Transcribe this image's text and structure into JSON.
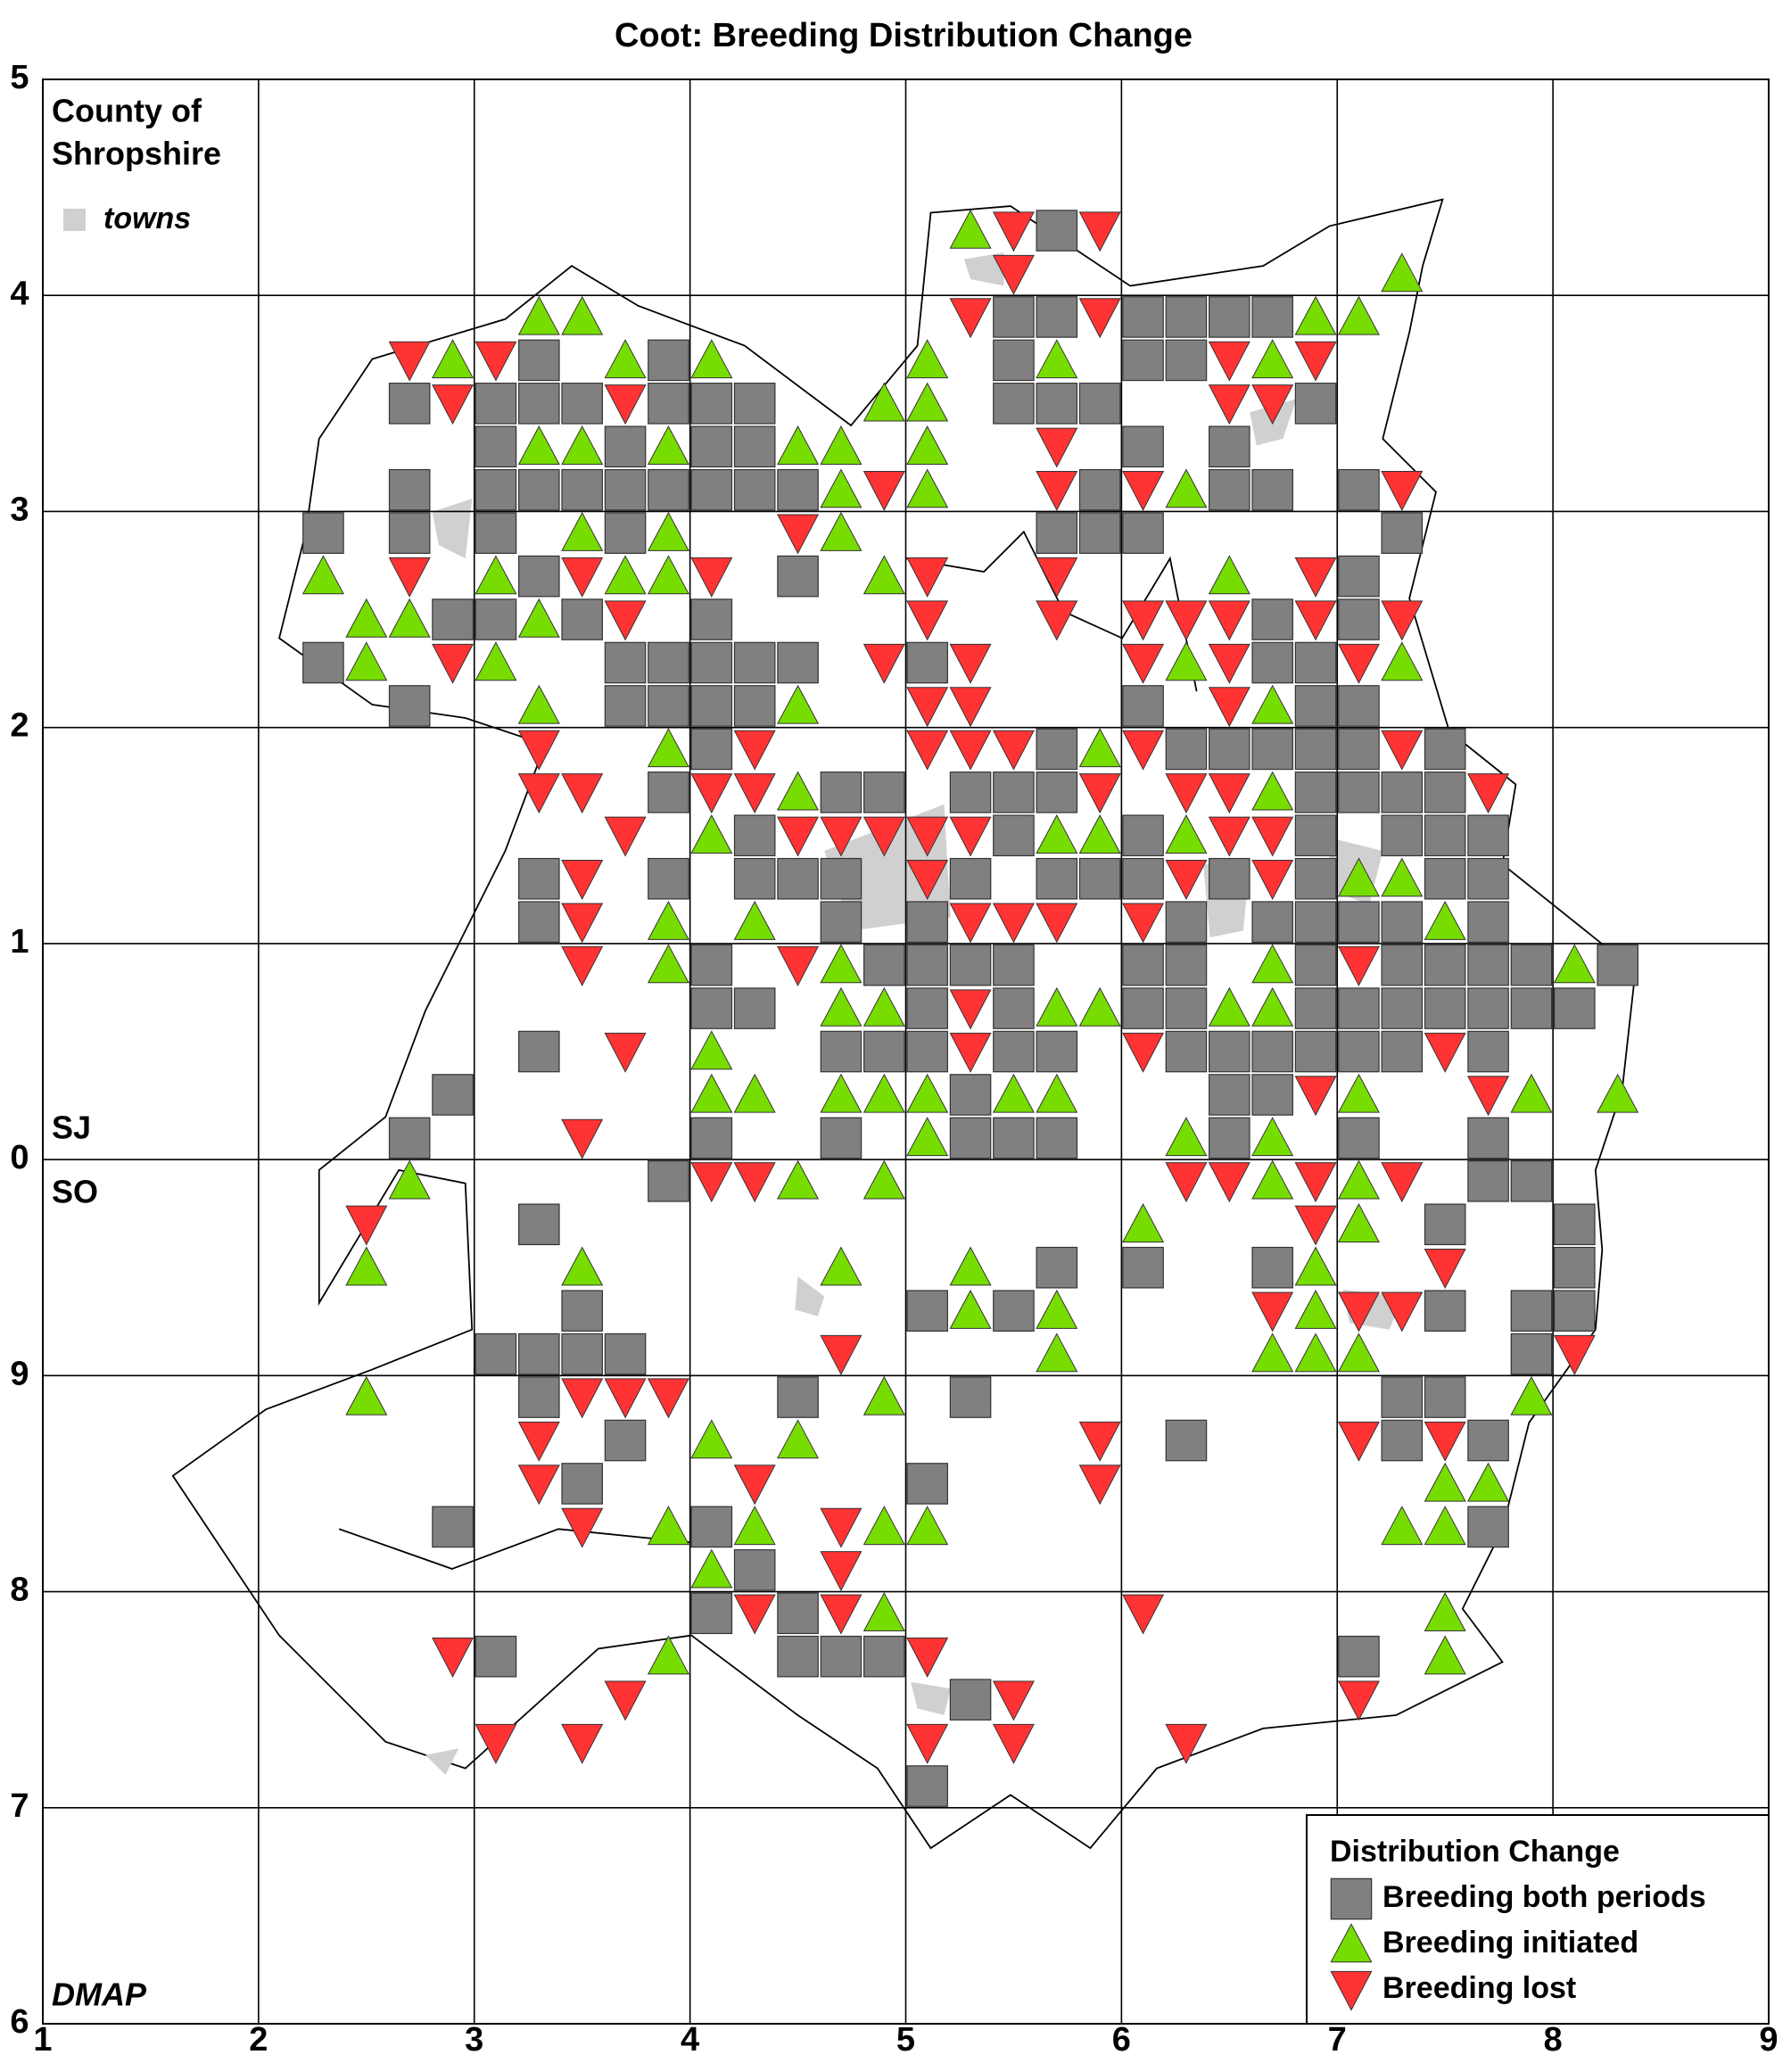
{
  "chart_data": {
    "type": "map",
    "title": "Coot: Breeding Distribution Change",
    "county_label": [
      "County of",
      "Shropshire"
    ],
    "towns_label": "towns",
    "grid_labels": [
      "SJ",
      "SO"
    ],
    "credit": "DMAP",
    "legend_title": "Distribution Change",
    "legend": "bottom right",
    "grid": true,
    "xlim": [
      1,
      9
    ],
    "xticks": [
      1,
      2,
      3,
      4,
      5,
      6,
      7,
      8,
      9
    ],
    "ylim": [
      6,
      15
    ],
    "yticks": [
      6,
      7,
      8,
      9,
      {
        "value": 10,
        "label": "0"
      },
      {
        "value": 11,
        "label": "1"
      },
      {
        "value": 12,
        "label": "2"
      },
      {
        "value": 13,
        "label": "3"
      },
      {
        "value": 14,
        "label": "4"
      },
      {
        "value": 15,
        "label": "5"
      }
    ],
    "series": [
      {
        "name": "Breeding both periods",
        "color": "#808080",
        "marker": "square",
        "rows": [
          {
            "y": 14.3,
            "x": [
              5.7
            ]
          },
          {
            "y": 13.9,
            "x": [
              5.5,
              5.7,
              6.1,
              6.3,
              6.5,
              6.7
            ]
          },
          {
            "y": 13.7,
            "x": [
              3.3,
              3.9,
              5.5,
              6.1,
              6.3
            ]
          },
          {
            "y": 13.5,
            "x": [
              2.7,
              3.1,
              3.3,
              3.5,
              3.9,
              4.1,
              4.3,
              5.5,
              5.7,
              5.9,
              6.9
            ]
          },
          {
            "y": 13.3,
            "x": [
              3.1,
              3.7,
              4.1,
              4.3,
              6.1,
              6.5
            ]
          },
          {
            "y": 13.1,
            "x": [
              2.7,
              3.1,
              3.3,
              3.5,
              3.7,
              3.9,
              4.1,
              4.3,
              4.5,
              5.9,
              6.5,
              6.7,
              7.1
            ]
          },
          {
            "y": 12.9,
            "x": [
              2.3,
              2.7,
              3.1,
              3.7,
              5.7,
              5.9,
              6.1,
              7.3
            ]
          },
          {
            "y": 12.7,
            "x": [
              3.3,
              4.5,
              7.1
            ]
          },
          {
            "y": 12.5,
            "x": [
              2.9,
              3.1,
              3.5,
              4.1,
              6.7,
              7.1
            ]
          },
          {
            "y": 12.3,
            "x": [
              2.3,
              3.7,
              3.9,
              4.1,
              4.3,
              4.5,
              5.1,
              6.7,
              6.9
            ]
          },
          {
            "y": 12.1,
            "x": [
              2.7,
              3.7,
              3.9,
              4.1,
              4.3,
              6.1,
              6.9,
              7.1
            ]
          },
          {
            "y": 11.9,
            "x": [
              4.1,
              5.7,
              6.3,
              6.5,
              6.7,
              6.9,
              7.1,
              7.5
            ]
          },
          {
            "y": 11.7,
            "x": [
              3.9,
              4.7,
              4.9,
              5.3,
              5.5,
              5.7,
              6.9,
              7.1,
              7.3,
              7.5
            ]
          },
          {
            "y": 11.5,
            "x": [
              4.3,
              5.5,
              6.1,
              6.9,
              7.3,
              7.5,
              7.7
            ]
          },
          {
            "y": 11.3,
            "x": [
              3.3,
              3.9,
              4.3,
              4.5,
              4.7,
              5.3,
              5.7,
              5.9,
              6.1,
              6.5,
              6.9,
              7.5,
              7.7
            ]
          },
          {
            "y": 11.1,
            "x": [
              3.3,
              4.7,
              5.1,
              6.3,
              6.7,
              6.9,
              7.1,
              7.3,
              7.7
            ]
          },
          {
            "y": 10.9,
            "x": [
              4.1,
              4.9,
              5.1,
              5.3,
              5.5,
              6.1,
              6.3,
              6.9,
              7.3,
              7.5,
              7.7,
              7.9,
              8.3
            ]
          },
          {
            "y": 10.7,
            "x": [
              4.1,
              4.3,
              5.1,
              5.5,
              6.1,
              6.3,
              6.9,
              7.1,
              7.3,
              7.5,
              7.7,
              7.9,
              8.1
            ]
          },
          {
            "y": 10.5,
            "x": [
              3.3,
              4.7,
              4.9,
              5.1,
              5.5,
              5.7,
              6.3,
              6.5,
              6.7,
              6.9,
              7.1,
              7.3,
              7.7
            ]
          },
          {
            "y": 10.3,
            "x": [
              2.9,
              5.3,
              6.5,
              6.7
            ]
          },
          {
            "y": 10.1,
            "x": [
              2.7,
              4.1,
              4.7,
              5.3,
              5.5,
              5.7,
              6.5,
              7.1,
              7.7
            ]
          },
          {
            "y": 9.9,
            "x": [
              3.9,
              7.7,
              7.9
            ]
          },
          {
            "y": 9.7,
            "x": [
              3.3,
              7.5,
              8.1
            ]
          },
          {
            "y": 9.5,
            "x": [
              5.7,
              6.1,
              6.7,
              8.1
            ]
          },
          {
            "y": 9.3,
            "x": [
              3.5,
              5.1,
              5.5,
              7.5,
              7.9,
              8.1
            ]
          },
          {
            "y": 9.1,
            "x": [
              3.1,
              3.3,
              3.5,
              3.7,
              7.9
            ]
          },
          {
            "y": 8.9,
            "x": [
              3.3,
              4.5,
              5.3,
              7.3,
              7.5
            ]
          },
          {
            "y": 8.7,
            "x": [
              3.7,
              6.3,
              7.3,
              7.7
            ]
          },
          {
            "y": 8.5,
            "x": [
              3.5,
              5.1
            ]
          },
          {
            "y": 8.3,
            "x": [
              2.9,
              4.1,
              7.7
            ]
          },
          {
            "y": 8.1,
            "x": [
              4.3
            ]
          },
          {
            "y": 7.9,
            "x": [
              4.1,
              4.5
            ]
          },
          {
            "y": 7.7,
            "x": [
              3.1,
              4.5,
              4.7,
              4.9,
              7.1
            ]
          },
          {
            "y": 7.5,
            "x": [
              5.3
            ]
          },
          {
            "y": 7.1,
            "x": [
              5.1
            ]
          }
        ]
      },
      {
        "name": "Breeding initiated",
        "color": "#77dd00",
        "marker": "triangle-up",
        "rows": [
          {
            "y": 14.3,
            "x": [
              5.3
            ]
          },
          {
            "y": 14.1,
            "x": [
              7.3
            ]
          },
          {
            "y": 13.9,
            "x": [
              3.3,
              3.5,
              6.9,
              7.1
            ]
          },
          {
            "y": 13.7,
            "x": [
              2.9,
              3.7,
              4.1,
              5.1,
              5.7,
              6.7
            ]
          },
          {
            "y": 13.5,
            "x": [
              4.9,
              5.1
            ]
          },
          {
            "y": 13.3,
            "x": [
              3.3,
              3.5,
              3.9,
              4.5,
              4.7,
              5.1
            ]
          },
          {
            "y": 13.1,
            "x": [
              4.7,
              5.1,
              6.3
            ]
          },
          {
            "y": 12.9,
            "x": [
              3.5,
              3.9,
              4.7
            ]
          },
          {
            "y": 12.7,
            "x": [
              2.3,
              3.1,
              3.7,
              3.9,
              4.9,
              6.5
            ]
          },
          {
            "y": 12.5,
            "x": [
              2.5,
              2.7,
              3.3
            ]
          },
          {
            "y": 12.3,
            "x": [
              2.5,
              3.1,
              6.3,
              7.3
            ]
          },
          {
            "y": 12.1,
            "x": [
              3.3,
              4.5,
              6.7
            ]
          },
          {
            "y": 11.9,
            "x": [
              3.9,
              5.9
            ]
          },
          {
            "y": 11.7,
            "x": [
              4.5,
              6.7
            ]
          },
          {
            "y": 11.5,
            "x": [
              4.1,
              5.7,
              5.9,
              6.3
            ]
          },
          {
            "y": 11.3,
            "x": [
              7.1,
              7.3
            ]
          },
          {
            "y": 11.1,
            "x": [
              3.9,
              4.3,
              7.5
            ]
          },
          {
            "y": 10.9,
            "x": [
              3.9,
              4.7,
              6.7,
              8.1
            ]
          },
          {
            "y": 10.7,
            "x": [
              4.7,
              4.9,
              5.7,
              5.9,
              6.5,
              6.7
            ]
          },
          {
            "y": 10.5,
            "x": [
              4.1
            ]
          },
          {
            "y": 10.3,
            "x": [
              4.1,
              4.3,
              4.7,
              4.9,
              5.1,
              5.5,
              5.7,
              7.1,
              7.9,
              8.3
            ]
          },
          {
            "y": 10.1,
            "x": [
              5.1,
              6.3,
              6.7
            ]
          },
          {
            "y": 9.9,
            "x": [
              2.7,
              4.5,
              4.9,
              6.7,
              7.1
            ]
          },
          {
            "y": 9.7,
            "x": [
              6.1,
              7.1
            ]
          },
          {
            "y": 9.5,
            "x": [
              2.5,
              3.5,
              4.7,
              5.3,
              6.9
            ]
          },
          {
            "y": 9.3,
            "x": [
              5.3,
              5.7,
              6.9
            ]
          },
          {
            "y": 9.1,
            "x": [
              5.7,
              6.7,
              6.9,
              7.1
            ]
          },
          {
            "y": 8.9,
            "x": [
              2.5,
              4.9,
              7.9
            ]
          },
          {
            "y": 8.7,
            "x": [
              4.1,
              4.5
            ]
          },
          {
            "y": 8.5,
            "x": [
              7.5,
              7.7
            ]
          },
          {
            "y": 8.3,
            "x": [
              3.9,
              4.3,
              4.9,
              5.1,
              7.3,
              7.5
            ]
          },
          {
            "y": 8.1,
            "x": [
              4.1
            ]
          },
          {
            "y": 7.9,
            "x": [
              4.9,
              7.5
            ]
          },
          {
            "y": 7.7,
            "x": [
              3.9,
              7.5
            ]
          }
        ]
      },
      {
        "name": "Breeding lost",
        "color": "#ff3333",
        "marker": "triangle-down",
        "rows": [
          {
            "y": 14.3,
            "x": [
              5.5,
              5.9
            ]
          },
          {
            "y": 14.1,
            "x": [
              5.5
            ]
          },
          {
            "y": 13.9,
            "x": [
              5.3,
              5.9
            ]
          },
          {
            "y": 13.7,
            "x": [
              2.7,
              3.1,
              6.5,
              6.9
            ]
          },
          {
            "y": 13.5,
            "x": [
              2.9,
              3.7,
              6.5,
              6.7
            ]
          },
          {
            "y": 13.3,
            "x": [
              5.7
            ]
          },
          {
            "y": 13.1,
            "x": [
              4.9,
              5.7,
              6.1,
              7.3
            ]
          },
          {
            "y": 12.9,
            "x": [
              4.5
            ]
          },
          {
            "y": 12.7,
            "x": [
              2.7,
              3.5,
              4.1,
              5.1,
              5.7,
              6.9
            ]
          },
          {
            "y": 12.5,
            "x": [
              3.7,
              5.1,
              5.7,
              6.1,
              6.3,
              6.5,
              6.9,
              7.3
            ]
          },
          {
            "y": 12.3,
            "x": [
              2.9,
              4.9,
              5.3,
              6.1,
              6.5,
              7.1
            ]
          },
          {
            "y": 12.1,
            "x": [
              5.1,
              5.3,
              6.5
            ]
          },
          {
            "y": 11.9,
            "x": [
              3.3,
              4.3,
              5.1,
              5.3,
              5.5,
              6.1,
              7.3
            ]
          },
          {
            "y": 11.7,
            "x": [
              3.3,
              3.5,
              4.1,
              4.3,
              5.9,
              6.3,
              6.5,
              7.7
            ]
          },
          {
            "y": 11.5,
            "x": [
              3.7,
              4.5,
              4.7,
              4.9,
              5.1,
              5.3,
              6.5,
              6.7
            ]
          },
          {
            "y": 11.3,
            "x": [
              3.5,
              5.1,
              6.3,
              6.7
            ]
          },
          {
            "y": 11.1,
            "x": [
              3.5,
              5.3,
              5.5,
              5.7,
              6.1
            ]
          },
          {
            "y": 10.9,
            "x": [
              3.5,
              4.5,
              7.1
            ]
          },
          {
            "y": 10.7,
            "x": [
              5.3
            ]
          },
          {
            "y": 10.5,
            "x": [
              3.7,
              5.3,
              6.1,
              7.5
            ]
          },
          {
            "y": 10.3,
            "x": [
              6.9,
              7.7
            ]
          },
          {
            "y": 10.1,
            "x": [
              3.5
            ]
          },
          {
            "y": 9.9,
            "x": [
              4.1,
              4.3,
              6.3,
              6.5,
              6.9,
              7.3
            ]
          },
          {
            "y": 9.7,
            "x": [
              2.5,
              6.9
            ]
          },
          {
            "y": 9.5,
            "x": [
              7.5
            ]
          },
          {
            "y": 9.3,
            "x": [
              6.7,
              7.1,
              7.3
            ]
          },
          {
            "y": 9.1,
            "x": [
              4.7,
              8.1
            ]
          },
          {
            "y": 8.9,
            "x": [
              3.5,
              3.7,
              3.9
            ]
          },
          {
            "y": 8.7,
            "x": [
              3.3,
              5.9,
              7.1,
              7.5
            ]
          },
          {
            "y": 8.5,
            "x": [
              3.3,
              4.3,
              5.9
            ]
          },
          {
            "y": 8.3,
            "x": [
              3.5,
              4.7
            ]
          },
          {
            "y": 8.1,
            "x": [
              4.7
            ]
          },
          {
            "y": 7.9,
            "x": [
              4.3,
              4.7,
              6.1
            ]
          },
          {
            "y": 7.7,
            "x": [
              2.9,
              5.1
            ]
          },
          {
            "y": 7.5,
            "x": [
              3.7,
              5.5,
              7.1
            ]
          },
          {
            "y": 7.3,
            "x": [
              3.1,
              3.5,
              5.1,
              5.5,
              6.3
            ]
          }
        ]
      }
    ]
  }
}
